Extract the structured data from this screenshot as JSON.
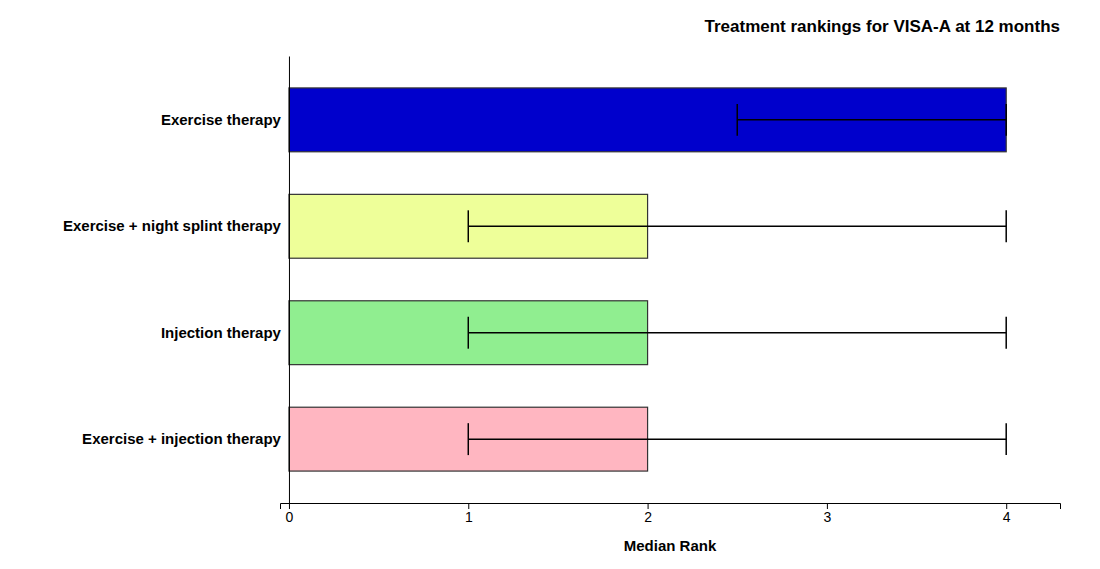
{
  "chart_data": {
    "type": "bar",
    "orientation": "horizontal",
    "title": "Treatment rankings for VISA-A at 12 months",
    "x_label": "Median Rank",
    "categories": [
      "Exercise + injection therapy",
      "Injection therapy",
      "Exercise + night splint therapy",
      "Exercise therapy"
    ],
    "values": [
      2,
      2,
      2,
      4
    ],
    "error_minus": [
      1.0,
      1.0,
      1.0,
      1.5
    ],
    "error_plus": [
      2.0,
      2.0,
      2.0,
      0.0
    ],
    "colors": [
      "#FFB6C1",
      "#90EE90",
      "#EEFF99",
      "#0000CC"
    ],
    "xlim": [
      -0.05,
      4.3
    ],
    "xticks": [
      0,
      1,
      2,
      3,
      4
    ],
    "grid": false
  }
}
